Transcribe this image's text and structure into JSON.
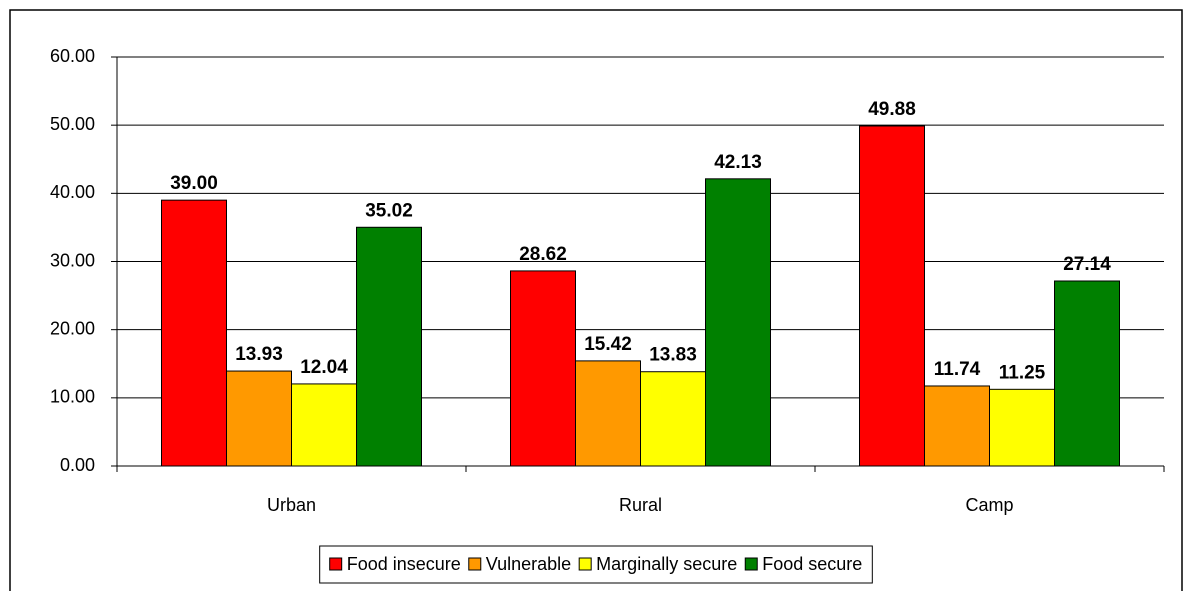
{
  "chart_data": {
    "type": "bar",
    "categories": [
      "Urban",
      "Rural",
      "Camp"
    ],
    "series": [
      {
        "name": "Food insecure",
        "color": "#ff0000",
        "values": [
          39.0,
          28.62,
          49.88
        ],
        "value_labels": [
          "39.00",
          "28.62",
          "49.88"
        ]
      },
      {
        "name": "Vulnerable",
        "color": "#ff9900",
        "values": [
          13.93,
          15.42,
          11.74
        ],
        "value_labels": [
          "13.93",
          "15.42",
          "11.74"
        ]
      },
      {
        "name": "Marginally secure",
        "color": "#ffff00",
        "values": [
          12.04,
          13.83,
          11.25
        ],
        "value_labels": [
          "12.04",
          "13.83",
          "11.25"
        ]
      },
      {
        "name": "Food secure",
        "color": "#008000",
        "values": [
          35.02,
          42.13,
          27.14
        ],
        "value_labels": [
          "35.02",
          "42.13",
          "27.14"
        ]
      }
    ],
    "ylim": [
      0,
      60
    ],
    "yticks": [
      {
        "value": 0,
        "label": "0.00"
      },
      {
        "value": 10,
        "label": "10.00"
      },
      {
        "value": 20,
        "label": "20.00"
      },
      {
        "value": 30,
        "label": "30.00"
      },
      {
        "value": 40,
        "label": "40.00"
      },
      {
        "value": 50,
        "label": "50.00"
      },
      {
        "value": 60,
        "label": "60.00"
      }
    ],
    "grid": true,
    "legend": "bottom"
  }
}
